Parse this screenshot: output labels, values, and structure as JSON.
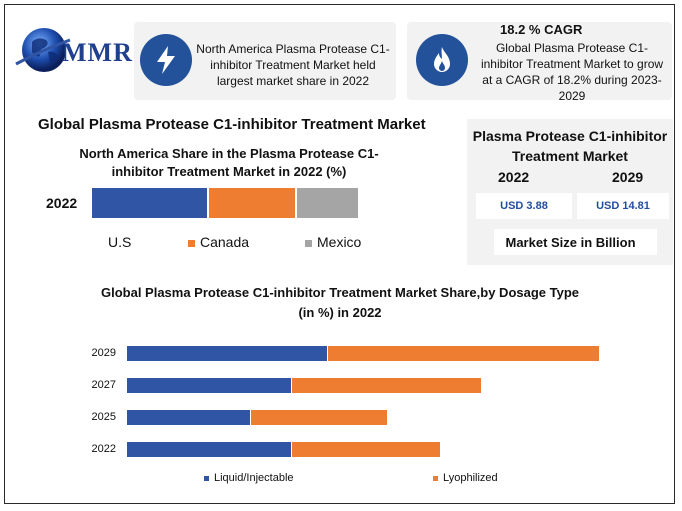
{
  "logo": {
    "text": "MMR",
    "icon": "globe-icon"
  },
  "card_left": {
    "icon": "lightning-bolt-icon",
    "text": "North America Plasma Protease C1-inhibitor Treatment Market held largest market share in 2022"
  },
  "card_right": {
    "icon": "flame-icon",
    "heading": "18.2 % CAGR",
    "text": "Global Plasma Protease C1-inhibitor Treatment Market to grow at a CAGR of 18.2% during 2023-2029"
  },
  "main_title": "Global Plasma Protease C1-inhibitor Treatment Market",
  "market_size": {
    "title": "Plasma Protease C1-inhibitor Treatment Market",
    "year_start": "2022",
    "year_end": "2029",
    "value_start": "USD 3.88",
    "value_end": "USD 14.81",
    "footer": "Market Size in Billion"
  },
  "colors": {
    "blue": "#2f55a4",
    "orange": "#ee7d31",
    "gray": "#a5a5a5",
    "badge": "#24529a"
  },
  "chart_data": [
    {
      "type": "bar",
      "orientation": "horizontal",
      "stacked": true,
      "title": "North America Share in the Plasma Protease C1-inhibitor Treatment Market in 2022 (%)",
      "categories": [
        "2022"
      ],
      "series": [
        {
          "name": "U.S",
          "values": [
            44
          ]
        },
        {
          "name": "Canada",
          "values": [
            33
          ]
        },
        {
          "name": "Mexico",
          "values": [
            23
          ]
        }
      ],
      "legend": "bottom"
    },
    {
      "type": "bar",
      "orientation": "horizontal",
      "stacked": true,
      "title": "Global Plasma Protease C1-inhibitor Treatment Market  Share,by Dosage Type (in %) in 2022",
      "categories": [
        "2029",
        "2027",
        "2025",
        "2022"
      ],
      "series": [
        {
          "name": "Liquid/Injectable",
          "values": [
            34,
            28,
            21,
            28
          ]
        },
        {
          "name": "Lyophilized",
          "values": [
            46,
            32,
            23,
            25
          ]
        }
      ],
      "xlim": [
        0,
        80
      ],
      "legend": "bottom"
    }
  ]
}
